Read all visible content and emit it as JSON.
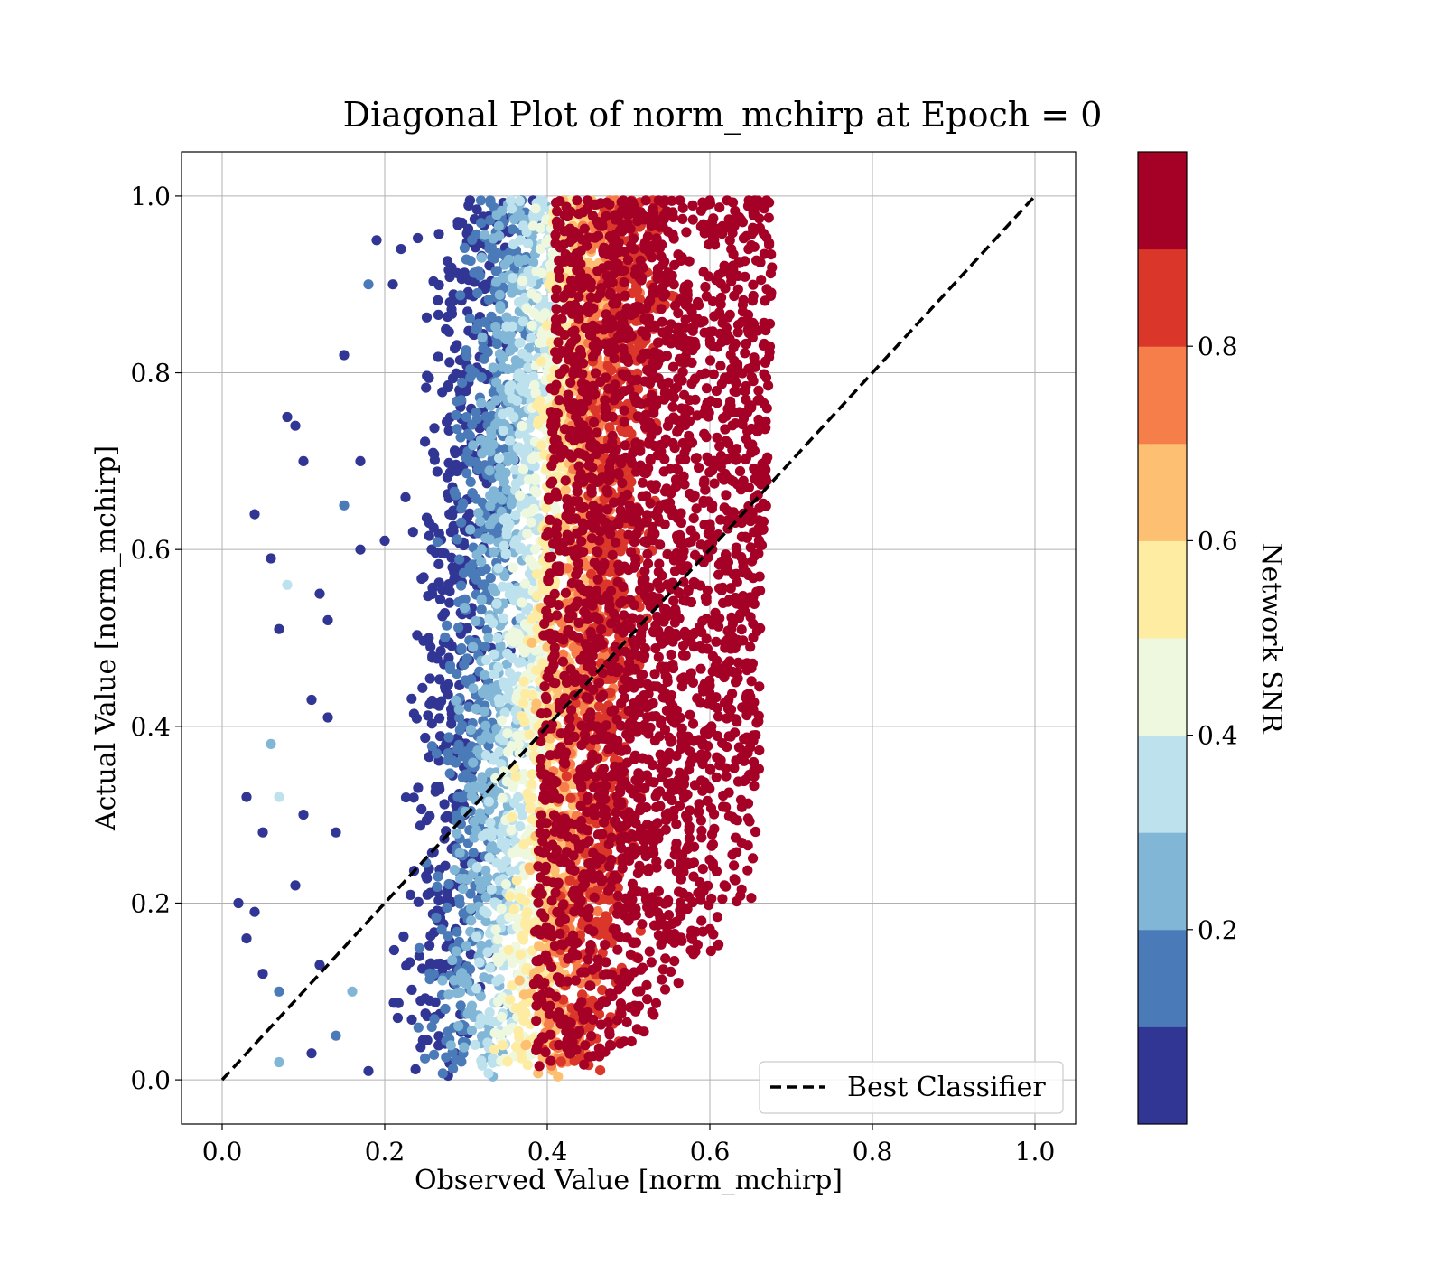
{
  "chart_data": {
    "type": "scatter",
    "title": "Diagonal Plot of norm_mchirp at Epoch = 0",
    "xlabel": "Observed Value [norm_mchirp]",
    "ylabel": "Actual Value [norm_mchirp]",
    "xlim": [
      -0.05,
      1.05
    ],
    "ylim": [
      -0.05,
      1.05
    ],
    "xticks": [
      "0.0",
      "0.2",
      "0.4",
      "0.6",
      "0.8",
      "1.0"
    ],
    "yticks": [
      "0.0",
      "0.2",
      "0.4",
      "0.6",
      "0.8",
      "1.0"
    ],
    "grid": true,
    "legend": {
      "placement": "lower-right",
      "entries": [
        "Best Classifier"
      ]
    },
    "reference_line": {
      "name": "Best Classifier",
      "style": "dashed",
      "color": "#000000",
      "x": [
        0.0,
        1.0
      ],
      "y": [
        0.0,
        1.0
      ]
    },
    "colorbar": {
      "label": "Network SNR",
      "range": [
        0.0,
        1.0
      ],
      "ticks": [
        "0.2",
        "0.4",
        "0.6",
        "0.8"
      ],
      "tick_values": [
        0.2,
        0.4,
        0.6,
        0.8
      ],
      "bins": [
        {
          "from": 0.0,
          "to": 0.1,
          "color": "#313695"
        },
        {
          "from": 0.1,
          "to": 0.2,
          "color": "#4a7ab7"
        },
        {
          "from": 0.2,
          "to": 0.3,
          "color": "#82b6d6"
        },
        {
          "from": 0.3,
          "to": 0.4,
          "color": "#bde2ee"
        },
        {
          "from": 0.4,
          "to": 0.5,
          "color": "#eef8df"
        },
        {
          "from": 0.5,
          "to": 0.6,
          "color": "#feeca2"
        },
        {
          "from": 0.6,
          "to": 0.7,
          "color": "#fdbf71"
        },
        {
          "from": 0.7,
          "to": 0.8,
          "color": "#f67e4b"
        },
        {
          "from": 0.8,
          "to": 0.9,
          "color": "#da372a"
        },
        {
          "from": 0.9,
          "to": 1.0,
          "color": "#a50026"
        }
      ]
    },
    "points": [
      {
        "x": 0.03,
        "y": 0.32,
        "snr": 0.05
      },
      {
        "x": 0.05,
        "y": 0.28,
        "snr": 0.05
      },
      {
        "x": 0.06,
        "y": 0.59,
        "snr": 0.05
      },
      {
        "x": 0.07,
        "y": 0.51,
        "snr": 0.05
      },
      {
        "x": 0.08,
        "y": 0.75,
        "snr": 0.05
      },
      {
        "x": 0.09,
        "y": 0.74,
        "snr": 0.05
      },
      {
        "x": 0.1,
        "y": 0.7,
        "snr": 0.05
      },
      {
        "x": 0.04,
        "y": 0.64,
        "snr": 0.05
      },
      {
        "x": 0.08,
        "y": 0.56,
        "snr": 0.35
      },
      {
        "x": 0.06,
        "y": 0.38,
        "snr": 0.25
      },
      {
        "x": 0.07,
        "y": 0.32,
        "snr": 0.35
      },
      {
        "x": 0.02,
        "y": 0.2,
        "snr": 0.05
      },
      {
        "x": 0.03,
        "y": 0.16,
        "snr": 0.05
      },
      {
        "x": 0.05,
        "y": 0.12,
        "snr": 0.05
      },
      {
        "x": 0.07,
        "y": 0.1,
        "snr": 0.15
      },
      {
        "x": 0.07,
        "y": 0.02,
        "snr": 0.25
      },
      {
        "x": 0.09,
        "y": 0.22,
        "snr": 0.05
      },
      {
        "x": 0.12,
        "y": 0.55,
        "snr": 0.05
      },
      {
        "x": 0.13,
        "y": 0.52,
        "snr": 0.05
      },
      {
        "x": 0.15,
        "y": 0.82,
        "snr": 0.05
      },
      {
        "x": 0.15,
        "y": 0.65,
        "snr": 0.15
      },
      {
        "x": 0.17,
        "y": 0.6,
        "snr": 0.05
      },
      {
        "x": 0.18,
        "y": 0.9,
        "snr": 0.15
      },
      {
        "x": 0.19,
        "y": 0.95,
        "snr": 0.05
      },
      {
        "x": 0.21,
        "y": 0.9,
        "snr": 0.05
      },
      {
        "x": 0.22,
        "y": 0.94,
        "snr": 0.05
      },
      {
        "x": 0.17,
        "y": 0.7,
        "snr": 0.05
      },
      {
        "x": 0.2,
        "y": 0.61,
        "snr": 0.05
      },
      {
        "x": 0.11,
        "y": 0.43,
        "snr": 0.05
      },
      {
        "x": 0.13,
        "y": 0.41,
        "snr": 0.05
      },
      {
        "x": 0.14,
        "y": 0.28,
        "snr": 0.05
      },
      {
        "x": 0.12,
        "y": 0.13,
        "snr": 0.05
      },
      {
        "x": 0.11,
        "y": 0.03,
        "snr": 0.05
      },
      {
        "x": 0.14,
        "y": 0.05,
        "snr": 0.15
      },
      {
        "x": 0.16,
        "y": 0.1,
        "snr": 0.25
      },
      {
        "x": 0.18,
        "y": 0.01,
        "snr": 0.05
      },
      {
        "x": 0.04,
        "y": 0.19,
        "snr": 0.05
      },
      {
        "x": 0.1,
        "y": 0.3,
        "snr": 0.05
      }
    ]
  },
  "clusters": [
    {
      "snr": 0.05,
      "x_mean": 0.255,
      "x_sd": 0.035,
      "count": 480
    },
    {
      "snr": 0.15,
      "x_mean": 0.285,
      "x_sd": 0.03,
      "count": 420
    },
    {
      "snr": 0.25,
      "x_mean": 0.31,
      "x_sd": 0.028,
      "count": 420
    },
    {
      "snr": 0.35,
      "x_mean": 0.335,
      "x_sd": 0.025,
      "count": 420
    },
    {
      "snr": 0.45,
      "x_mean": 0.355,
      "x_sd": 0.022,
      "count": 380
    },
    {
      "snr": 0.55,
      "x_mean": 0.375,
      "x_sd": 0.022,
      "count": 400
    },
    {
      "snr": 0.65,
      "x_mean": 0.395,
      "x_sd": 0.022,
      "count": 420
    },
    {
      "snr": 0.75,
      "x_mean": 0.42,
      "x_sd": 0.025,
      "count": 500
    },
    {
      "snr": 0.85,
      "x_mean": 0.45,
      "x_sd": 0.03,
      "count": 600
    },
    {
      "snr": 0.95,
      "x_mean": 0.55,
      "x_sd": 0.06,
      "count": 2600
    }
  ]
}
